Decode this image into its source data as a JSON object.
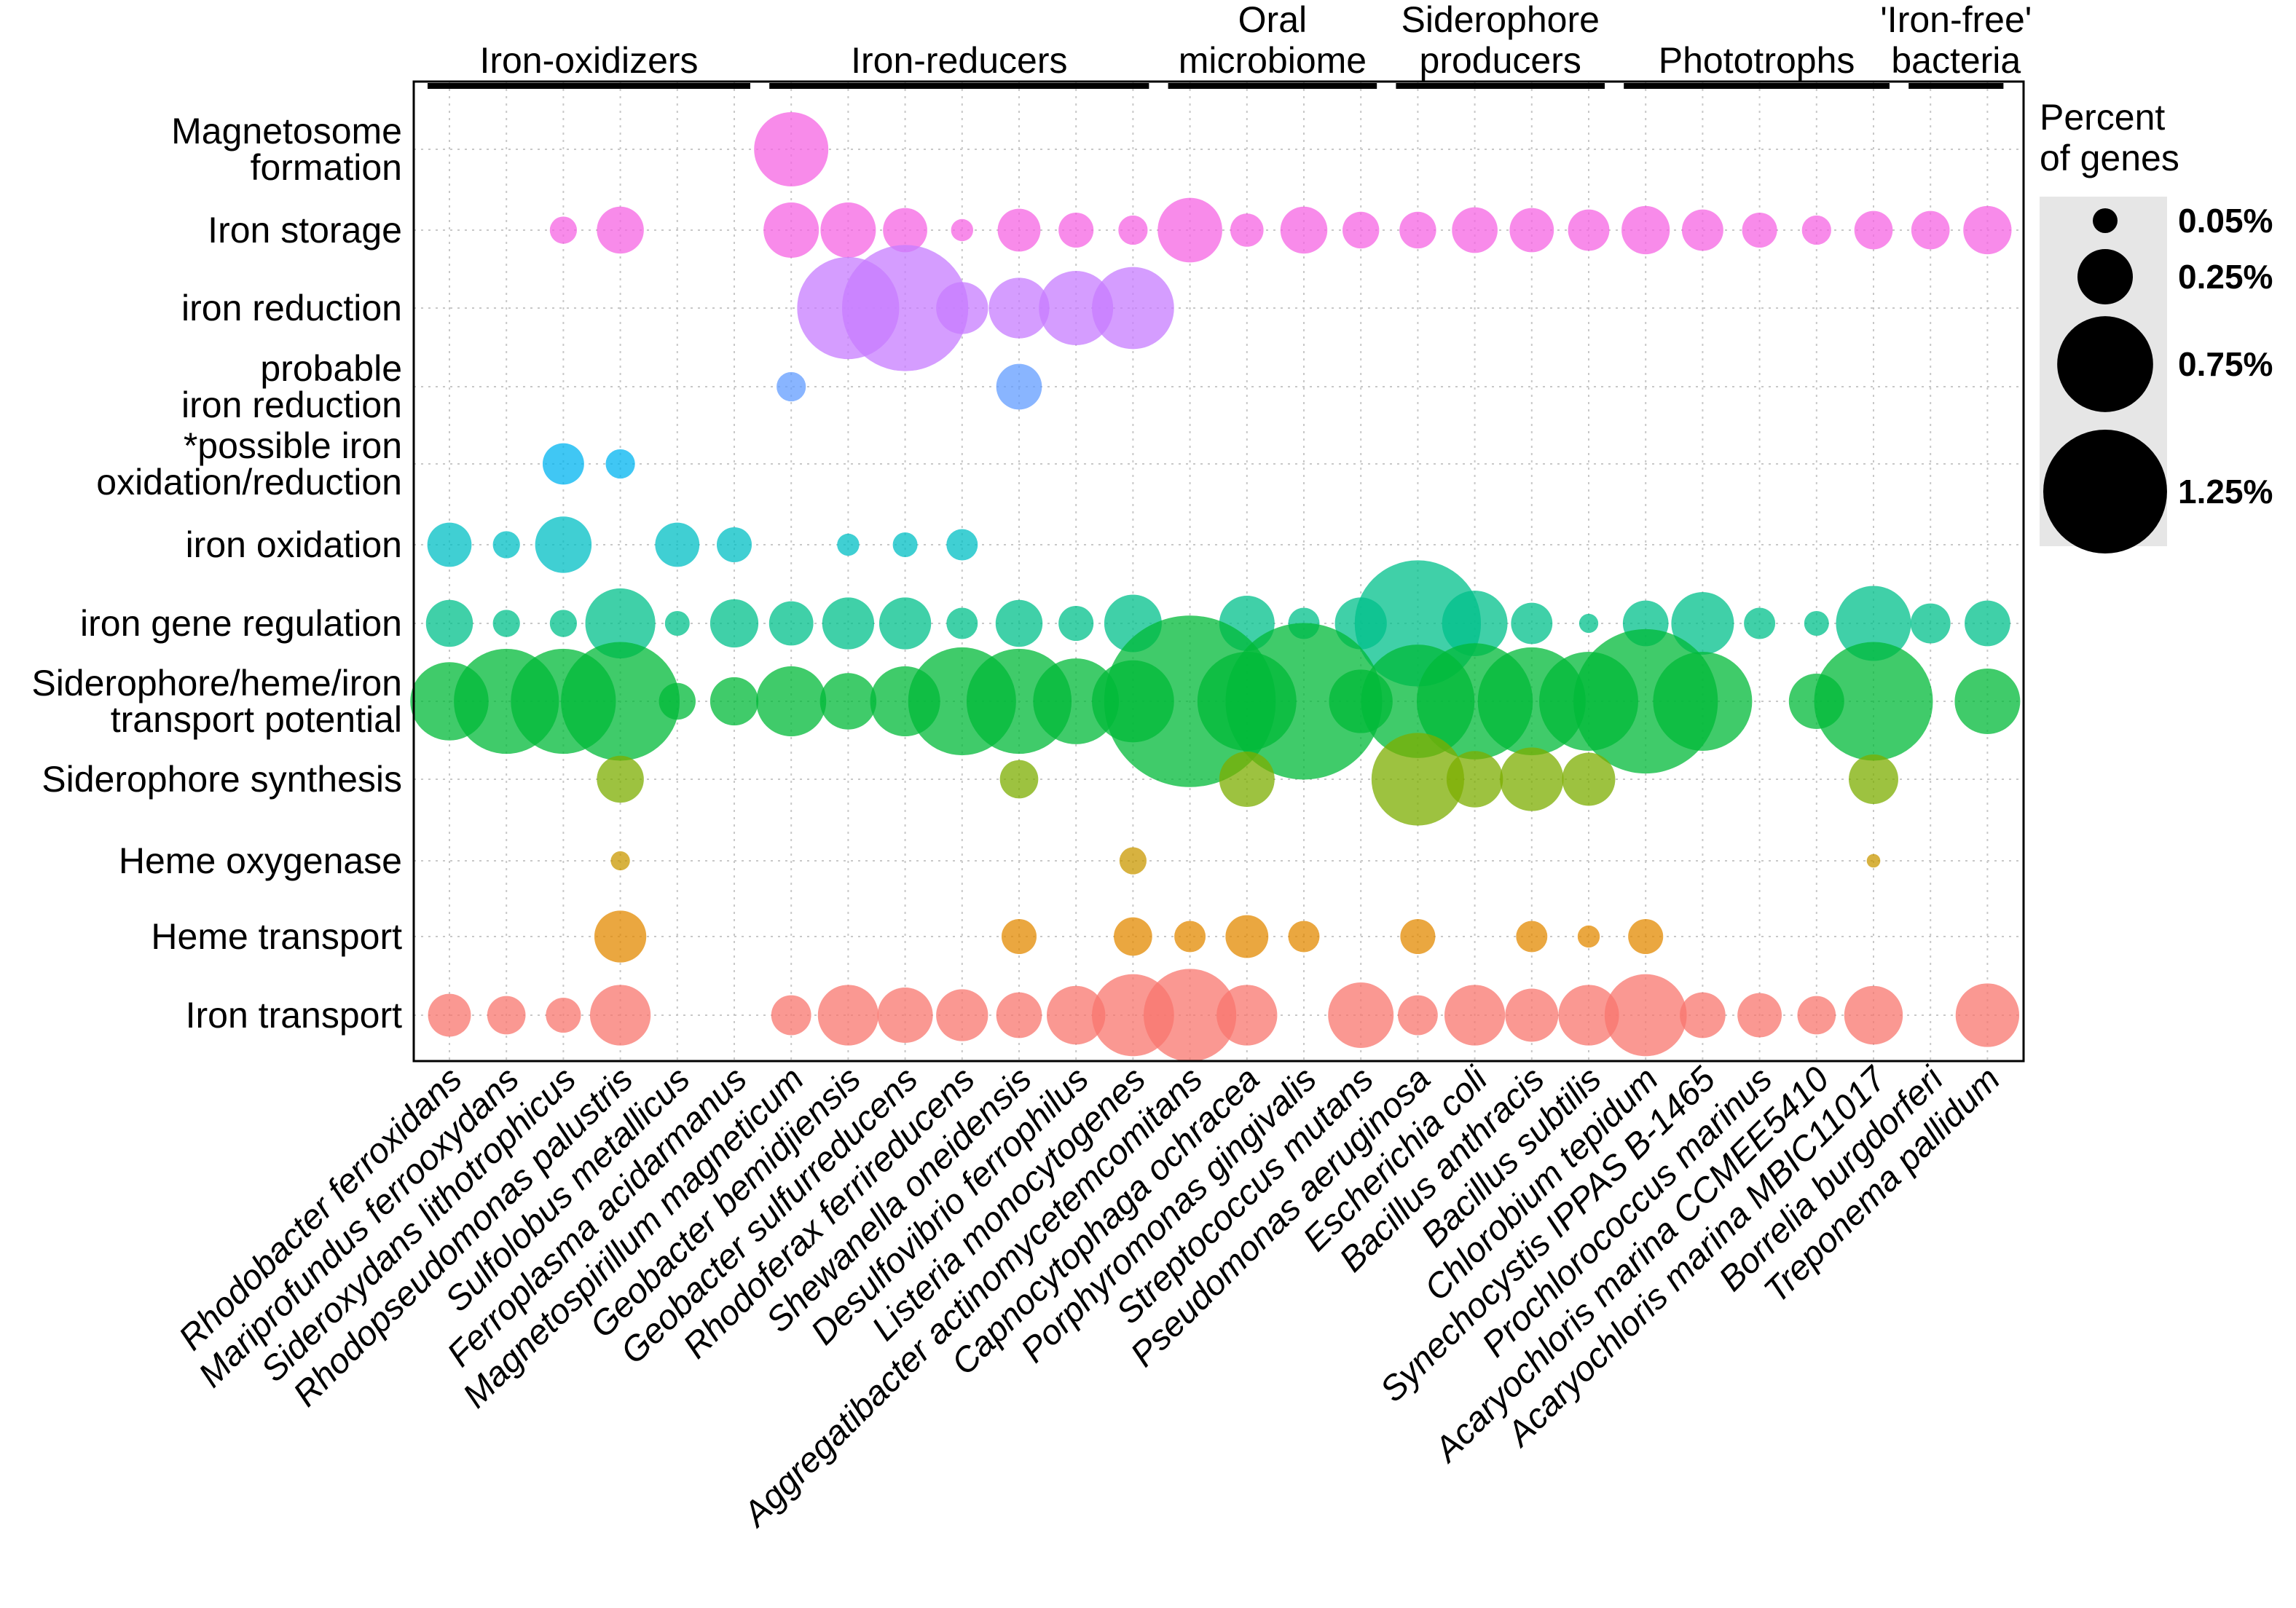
{
  "chart_data": {
    "type": "bubble",
    "title": "",
    "columns": [
      "Rhodobacter ferroxidans",
      "Mariprofundus ferrooxydans",
      "Sideroxydans lithotrophicus",
      "Rhodopseudomonas palustris",
      "Sulfolobus metallicus",
      "Ferroplasma acidarmanus",
      "Magnetospirillum magneticum",
      "Geobacter bemidjiensis",
      "Geobacter sulfurreducens",
      "Rhodoferax ferrireducens",
      "Shewanella oneidensis",
      "Desulfovibrio ferrophilus",
      "Listeria monocytogenes",
      "Aggregatibacter actinomycetemcomitans",
      "Capnocytophaga ochracea",
      "Porphyromonas gingivalis",
      "Streptococcus mutans",
      "Pseudomonas aeruginosa",
      "Escherichia coli",
      "Bacillus anthracis",
      "Bacillus subtilis",
      "Chlorobium tepidum",
      "Synechocystis IPPAS B-1465",
      "Prochlorococcus marinus",
      "Acaryochloris marina CCMEE5410",
      "Acaryochloris marina MBIC11017",
      "Borrelia burgdorferi",
      "Treponema pallidum"
    ],
    "groups": [
      {
        "label": "Iron-oxidizers",
        "start": 0,
        "end": 5
      },
      {
        "label": "Iron-reducers",
        "start": 6,
        "end": 12
      },
      {
        "label": "Oral\nmicrobiome",
        "start": 13,
        "end": 16
      },
      {
        "label": "Siderophore\nproducers",
        "start": 17,
        "end": 20
      },
      {
        "label": "Phototrophs",
        "start": 21,
        "end": 25
      },
      {
        "label": "'Iron-free'\nbacteria",
        "start": 26,
        "end": 27
      }
    ],
    "rows": [
      {
        "label": "Magnetosome\nformation",
        "color": "#F564E3",
        "values": [
          null,
          null,
          null,
          null,
          null,
          null,
          0.45,
          null,
          null,
          null,
          null,
          null,
          null,
          null,
          null,
          null,
          null,
          null,
          null,
          null,
          null,
          null,
          null,
          null,
          null,
          null,
          null,
          null
        ]
      },
      {
        "label": "Iron storage",
        "color": "#F564E3",
        "values": [
          null,
          null,
          0.06,
          0.18,
          null,
          null,
          0.25,
          0.25,
          0.16,
          0.04,
          0.15,
          0.1,
          0.07,
          0.34,
          0.09,
          0.18,
          0.11,
          0.11,
          0.17,
          0.16,
          0.14,
          0.19,
          0.14,
          0.1,
          0.07,
          0.12,
          0.12,
          0.19
        ]
      },
      {
        "label": "iron reduction",
        "color": "#C77CFF",
        "values": [
          null,
          null,
          null,
          null,
          null,
          null,
          null,
          0.85,
          1.3,
          0.22,
          0.3,
          0.45,
          0.55,
          null,
          null,
          null,
          null,
          null,
          null,
          null,
          null,
          null,
          null,
          null,
          null,
          null,
          null,
          null
        ]
      },
      {
        "label": "probable\niron reduction",
        "color": "#619CFF",
        "values": [
          null,
          null,
          null,
          null,
          null,
          null,
          0.07,
          null,
          null,
          null,
          0.17,
          null,
          null,
          null,
          null,
          null,
          null,
          null,
          null,
          null,
          null,
          null,
          null,
          null,
          null,
          null,
          null,
          null
        ]
      },
      {
        "label": "*possible iron\noxidation/reduction",
        "color": "#00B4F0",
        "values": [
          null,
          null,
          0.14,
          0.07,
          null,
          null,
          null,
          null,
          null,
          null,
          null,
          null,
          null,
          null,
          null,
          null,
          null,
          null,
          null,
          null,
          null,
          null,
          null,
          null,
          null,
          null,
          null,
          null
        ]
      },
      {
        "label": "iron oxidation",
        "color": "#00BFC4",
        "values": [
          0.16,
          0.06,
          0.26,
          null,
          0.16,
          0.1,
          null,
          0.04,
          0.05,
          0.08,
          null,
          null,
          null,
          null,
          null,
          null,
          null,
          null,
          null,
          null,
          null,
          null,
          null,
          null,
          null,
          null,
          null,
          null
        ]
      },
      {
        "label": "iron gene regulation",
        "color": "#00C08B",
        "values": [
          0.18,
          0.06,
          0.06,
          0.4,
          0.05,
          0.19,
          0.16,
          0.22,
          0.22,
          0.08,
          0.18,
          0.1,
          0.27,
          null,
          0.25,
          0.08,
          0.22,
          1.3,
          0.35,
          0.14,
          0.03,
          0.17,
          0.32,
          0.08,
          0.05,
          0.46,
          0.13,
          0.17
        ]
      },
      {
        "label": "Siderophore/heme/iron\ntransport potential",
        "color": "#00BA38",
        "values": [
          0.5,
          0.9,
          0.9,
          1.15,
          0.11,
          0.19,
          0.4,
          0.26,
          0.4,
          0.95,
          0.9,
          0.6,
          0.55,
          2.4,
          0.8,
          2.0,
          0.33,
          1.05,
          1.1,
          0.95,
          0.8,
          1.7,
          0.8,
          null,
          0.25,
          1.15,
          null,
          0.35
        ]
      },
      {
        "label": "Siderophore synthesis",
        "color": "#7CAE00",
        "values": [
          null,
          null,
          null,
          0.18,
          null,
          null,
          null,
          null,
          null,
          null,
          0.12,
          null,
          null,
          null,
          0.25,
          null,
          null,
          0.7,
          0.26,
          0.33,
          0.23,
          null,
          null,
          null,
          null,
          0.2,
          null,
          null
        ]
      },
      {
        "label": "Heme oxygenase",
        "color": "#C99800",
        "values": [
          null,
          null,
          null,
          0.03,
          null,
          null,
          null,
          null,
          null,
          null,
          null,
          null,
          0.06,
          null,
          null,
          null,
          null,
          null,
          null,
          null,
          null,
          null,
          null,
          null,
          null,
          0.015,
          null,
          null
        ]
      },
      {
        "label": "Heme transport",
        "color": "#E38900",
        "values": [
          null,
          null,
          null,
          0.22,
          null,
          null,
          null,
          null,
          null,
          null,
          0.1,
          null,
          0.12,
          0.08,
          0.15,
          0.08,
          null,
          0.1,
          null,
          0.08,
          0.04,
          0.1,
          null,
          null,
          null,
          null,
          null,
          null
        ]
      },
      {
        "label": "Iron transport",
        "color": "#F8766D",
        "values": [
          0.15,
          0.12,
          0.1,
          0.3,
          null,
          null,
          0.13,
          0.3,
          0.25,
          0.22,
          0.17,
          0.28,
          0.55,
          0.7,
          0.3,
          null,
          0.35,
          0.13,
          0.3,
          0.23,
          0.3,
          0.55,
          0.17,
          0.16,
          0.12,
          0.28,
          null,
          0.33
        ]
      }
    ],
    "legend": {
      "title": "Percent\nof genes",
      "placement": "right",
      "entries": [
        {
          "label": "0.05%",
          "value": 0.05
        },
        {
          "label": "0.25%",
          "value": 0.25
        },
        {
          "label": "0.75%",
          "value": 0.75
        },
        {
          "label": "1.25%",
          "value": 1.25
        }
      ]
    },
    "grid": true
  }
}
